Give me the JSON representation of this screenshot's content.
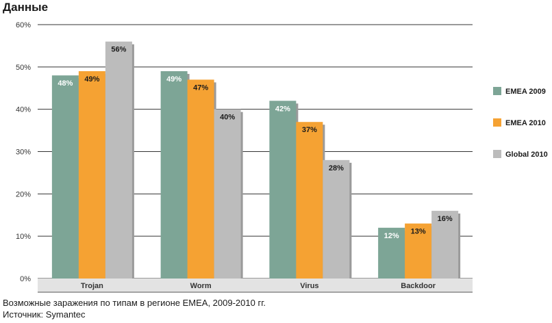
{
  "header": {
    "title": "Данные"
  },
  "caption": {
    "line1": "Возможные заражения по типам в регионе EMEA, 2009-2010 гг.",
    "line2": "Источник: Symantec"
  },
  "chart_data": {
    "type": "bar",
    "title": "Данные",
    "categories": [
      "Trojan",
      "Worm",
      "Virus",
      "Backdoor"
    ],
    "series": [
      {
        "name": "EMEA 2009",
        "values": [
          48,
          49,
          42,
          12
        ],
        "color": "#7da596",
        "label_color": "#ffffff",
        "label_bold": false
      },
      {
        "name": "EMEA 2010",
        "values": [
          49,
          47,
          37,
          13
        ],
        "color": "#f5a233",
        "label_color": "#1a1a1a",
        "label_bold": true
      },
      {
        "name": "Global 2010",
        "values": [
          56,
          40,
          28,
          16
        ],
        "color": "#bcbcbc",
        "label_color": "#1a1a1a",
        "label_bold": true
      }
    ],
    "value_suffix": "%",
    "ylim": [
      0,
      60
    ],
    "yticks": [
      0,
      10,
      20,
      30,
      40,
      50,
      60
    ],
    "ytick_labels": [
      "0%",
      "10%",
      "20%",
      "30%",
      "40%",
      "50%",
      "60%"
    ],
    "grid": true,
    "legend_position": "right",
    "shadow_color": "#9a9a9a",
    "axis_band_color": "#e3e3e3"
  }
}
